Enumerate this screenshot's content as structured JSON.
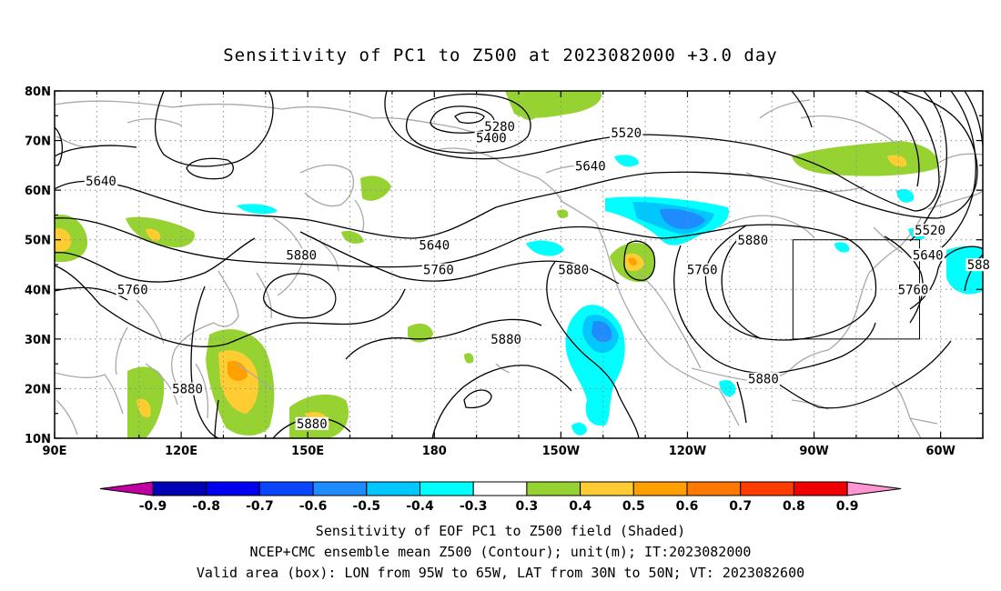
{
  "title": "Sensitivity of PC1 to Z500 at 2023082000 +3.0 day",
  "axes": {
    "lat_labels": [
      "80N",
      "70N",
      "60N",
      "50N",
      "40N",
      "30N",
      "20N",
      "10N"
    ],
    "lon_labels": [
      "90E",
      "120E",
      "150E",
      "180",
      "150W",
      "120W",
      "90W",
      "60W"
    ],
    "lat_range": [
      10,
      80
    ],
    "lon_range_east": [
      90,
      310
    ]
  },
  "contour_labels": [
    {
      "text": "5280",
      "lon": 195.5,
      "lat": 72.5
    },
    {
      "text": "5400",
      "lon": 193.5,
      "lat": 70.2
    },
    {
      "text": "5520",
      "lon": 225.5,
      "lat": 71.2
    },
    {
      "text": "5640",
      "lon": 101,
      "lat": 61.5
    },
    {
      "text": "5640",
      "lon": 217,
      "lat": 64.5
    },
    {
      "text": "5640",
      "lon": 180,
      "lat": 48.6
    },
    {
      "text": "5760",
      "lon": 108.5,
      "lat": 39.6
    },
    {
      "text": "5760",
      "lon": 181,
      "lat": 43.6
    },
    {
      "text": "5760",
      "lon": 243.5,
      "lat": 43.6
    },
    {
      "text": "5880",
      "lon": 148.5,
      "lat": 46.6
    },
    {
      "text": "5880",
      "lon": 213,
      "lat": 43.6
    },
    {
      "text": "5880",
      "lon": 255.5,
      "lat": 49.6
    },
    {
      "text": "5880",
      "lon": 197,
      "lat": 29.6
    },
    {
      "text": "5880",
      "lon": 121.5,
      "lat": 19.6
    },
    {
      "text": "5880",
      "lon": 151,
      "lat": 12.6
    },
    {
      "text": "5880",
      "lon": 258,
      "lat": 21.6
    },
    {
      "text": "5520",
      "lon": 297.5,
      "lat": 51.6
    },
    {
      "text": "5640",
      "lon": 297,
      "lat": 46.6
    },
    {
      "text": "5760",
      "lon": 293.5,
      "lat": 39.6
    },
    {
      "text": "588",
      "lon": 309,
      "lat": 44.6
    }
  ],
  "valid_box": {
    "lon": [
      -95,
      -65
    ],
    "lat": [
      30,
      50
    ]
  },
  "colorbar": {
    "labels": [
      "-0.9",
      "-0.8",
      "-0.7",
      "-0.6",
      "-0.5",
      "-0.4",
      "-0.3",
      "0.3",
      "0.4",
      "0.5",
      "0.6",
      "0.7",
      "0.8",
      "0.9"
    ],
    "colors": [
      "#c000a0",
      "#0000b4",
      "#0000f0",
      "#0a46ff",
      "#1e8cff",
      "#00c8ff",
      "#00ffff",
      "#ffffff",
      "#96d232",
      "#ffcd32",
      "#ffa000",
      "#ff7800",
      "#ff3c00",
      "#f00000",
      "#ff96d2"
    ]
  },
  "footer": [
    "Sensitivity of EOF PC1 to Z500 field (Shaded)",
    "NCEP+CMC ensemble mean Z500 (Contour); unit(m); IT:2023082000",
    "Valid area (box): LON from 95W to 65W, LAT from 30N to 50N; VT: 2023082600"
  ]
}
